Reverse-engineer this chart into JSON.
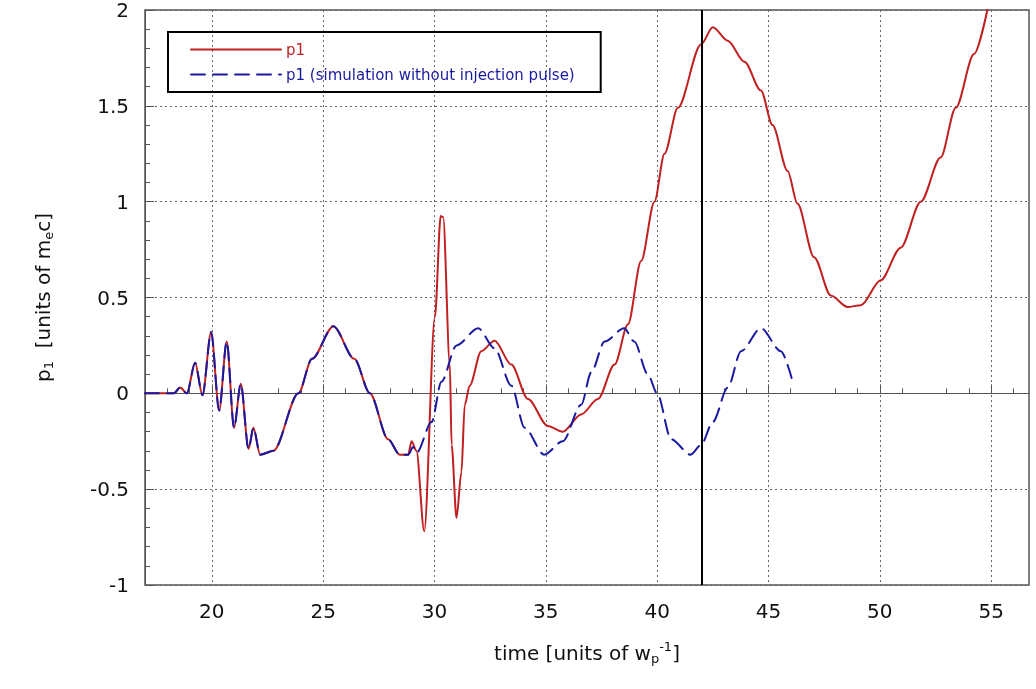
{
  "chart_data": {
    "type": "line",
    "xlabel": "time [units of w$_{p}$$^{-1}$]",
    "ylabel": "p$_{1}$  [units of m$_{e}$c]",
    "xlim": [
      17,
      56.7
    ],
    "xticks": [
      20,
      25,
      30,
      35,
      40,
      45,
      50,
      55
    ],
    "ylim": [
      -1,
      2
    ],
    "yticks": [
      -1,
      -0.5,
      0,
      0.5,
      1,
      1.5,
      2
    ],
    "grid": true,
    "legend": "top left",
    "marker": "none",
    "ref_lines": [
      {
        "axis": "x",
        "value": 42,
        "color": "#000000",
        "line_style": "solid"
      }
    ],
    "series": [
      {
        "name": "p1",
        "color": "#c02020",
        "line_style": "solid",
        "x": [
          17,
          18.3,
          18.58,
          18.88,
          19.25,
          19.58,
          19.97,
          20.33,
          20.67,
          21.0,
          21.3,
          21.65,
          21.87,
          22.17,
          22.77,
          23.89,
          24.5,
          25.46,
          26.4,
          27.1,
          27.92,
          28.44,
          28.82,
          28.97,
          29.19,
          29.54,
          30.02,
          30.28,
          30.39,
          30.69,
          30.77,
          30.99,
          31.21,
          31.36,
          31.58,
          32.1,
          32.7,
          33.45,
          34.2,
          35.09,
          35.76,
          36.59,
          37.34,
          38.09,
          38.69,
          39.28,
          39.88,
          40.33,
          40.93,
          41.97,
          42.5,
          43.17,
          43.92,
          44.66,
          45.18,
          45.86,
          46.3,
          47.05,
          47.8,
          48.55,
          49.15,
          50.04,
          50.94,
          51.84,
          52.73,
          53.41,
          54.23,
          54.83
        ],
        "values": [
          0,
          0,
          0.03,
          0,
          0.16,
          -0.01,
          0.32,
          -0.09,
          0.27,
          -0.18,
          0.05,
          -0.29,
          -0.18,
          -0.32,
          -0.3,
          0,
          0.18,
          0.35,
          0.18,
          0,
          -0.24,
          -0.32,
          -0.32,
          -0.25,
          -0.3,
          -0.72,
          0.4,
          0.925,
          0.92,
          0.15,
          -0.27,
          -0.65,
          -0.41,
          -0.06,
          0.04,
          0.22,
          0.275,
          0.15,
          -0.03,
          -0.17,
          -0.2,
          -0.11,
          -0.03,
          0.15,
          0.36,
          0.69,
          1.0,
          1.25,
          1.49,
          1.82,
          1.91,
          1.84,
          1.73,
          1.58,
          1.4,
          1.16,
          0.99,
          0.71,
          0.51,
          0.45,
          0.46,
          0.59,
          0.76,
          1.0,
          1.23,
          1.49,
          1.77,
          2.0
        ]
      },
      {
        "name": "p1 (simulation without injection pulse)",
        "color": "#1a1aa0",
        "line_style": "dashed",
        "x": [
          17,
          18.3,
          18.58,
          18.88,
          19.25,
          19.58,
          19.97,
          20.33,
          20.67,
          21.0,
          21.3,
          21.65,
          21.87,
          22.17,
          22.77,
          23.89,
          24.5,
          25.46,
          26.4,
          27.1,
          27.92,
          28.44,
          28.82,
          29.04,
          29.2,
          29.87,
          30.31,
          30.99,
          31.96,
          32.7,
          33.45,
          34.05,
          34.93,
          35.76,
          36.59,
          37.04,
          37.64,
          38.52,
          38.97,
          39.58,
          40.0,
          40.63,
          41.5,
          41.97,
          42.5,
          43.17,
          43.77,
          44.66,
          45.56,
          46.04
        ],
        "values": [
          0,
          0,
          0.03,
          0,
          0.16,
          -0.01,
          0.32,
          -0.09,
          0.27,
          -0.18,
          0.05,
          -0.29,
          -0.18,
          -0.32,
          -0.3,
          0,
          0.18,
          0.35,
          0.18,
          0,
          -0.24,
          -0.32,
          -0.32,
          -0.28,
          -0.31,
          -0.15,
          0.06,
          0.25,
          0.34,
          0.235,
          0.04,
          -0.18,
          -0.32,
          -0.25,
          -0.06,
          0.11,
          0.27,
          0.34,
          0.27,
          0.1,
          0,
          -0.24,
          -0.32,
          -0.27,
          -0.15,
          0.03,
          0.22,
          0.34,
          0.22,
          0.08
        ]
      }
    ]
  }
}
